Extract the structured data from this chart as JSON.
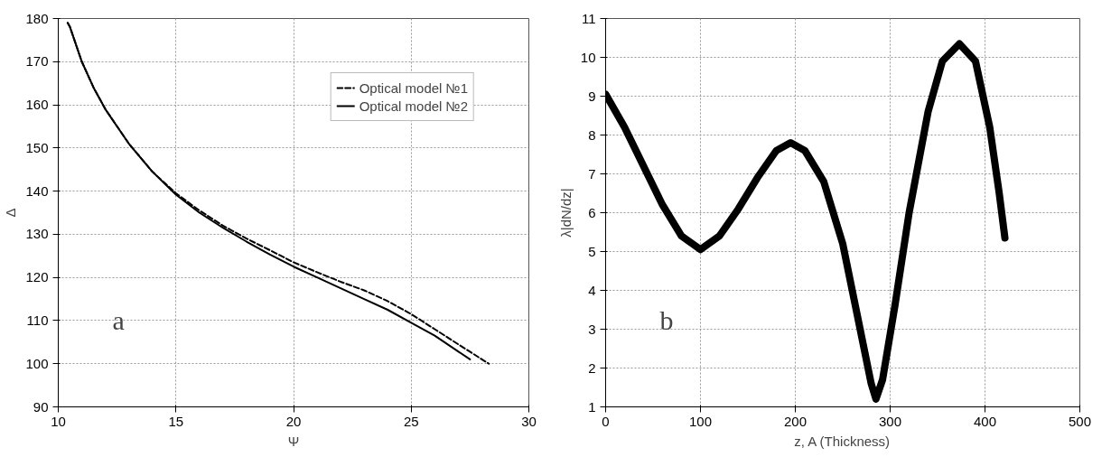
{
  "chart_data": [
    {
      "type": "line",
      "xlabel": "Ψ",
      "ylabel": "Δ",
      "xlim": [
        10,
        30
      ],
      "ylim": [
        90,
        180
      ],
      "xticks": [
        10,
        15,
        20,
        25,
        30
      ],
      "yticks": [
        90,
        100,
        110,
        120,
        130,
        140,
        150,
        160,
        170,
        180
      ],
      "grid": true,
      "legend": "top right",
      "marker": "none",
      "annotations": [
        "a"
      ],
      "series": [
        {
          "name": "Optical model №1",
          "color": "#000000",
          "line_style": "dashed",
          "x": [
            10.4,
            10.5,
            11,
            11.5,
            12,
            12.5,
            13,
            14,
            15,
            16,
            17,
            18,
            19,
            20,
            21,
            22,
            23,
            24,
            25,
            26,
            27,
            28.3
          ],
          "values": [
            179,
            178,
            170,
            164,
            159,
            155,
            151,
            144.5,
            139.5,
            135.5,
            132,
            129,
            126.3,
            123.5,
            121.2,
            119,
            117,
            114.5,
            111.5,
            108,
            104.5,
            100
          ]
        },
        {
          "name": "Optical model №2",
          "color": "#000000",
          "line_style": "solid",
          "x": [
            10.4,
            10.5,
            11,
            11.5,
            12,
            12.5,
            13,
            14,
            15,
            16,
            17,
            18,
            19,
            20,
            21,
            22,
            23,
            24,
            25,
            26,
            27.5
          ],
          "values": [
            179,
            178,
            170,
            164,
            159,
            155,
            151,
            144.5,
            139.2,
            135,
            131.5,
            128.3,
            125.3,
            122.5,
            120,
            117.5,
            115,
            112.5,
            109.5,
            106.5,
            101
          ]
        }
      ]
    },
    {
      "type": "line",
      "xlabel": "z, A (Thickness)",
      "ylabel": "λ|dN/dz|",
      "xlim": [
        0,
        500
      ],
      "ylim": [
        1,
        11
      ],
      "xticks": [
        0,
        100,
        200,
        300,
        400,
        500
      ],
      "yticks": [
        1,
        2,
        3,
        4,
        5,
        6,
        7,
        8,
        9,
        10,
        11
      ],
      "grid": true,
      "marker": "none",
      "annotations": [
        "b"
      ],
      "series": [
        {
          "color": "#000000",
          "line_style": "solid",
          "x": [
            0,
            20,
            40,
            60,
            80,
            100,
            120,
            140,
            160,
            180,
            195,
            210,
            230,
            250,
            265,
            280,
            285,
            292,
            305,
            320,
            340,
            355,
            373,
            390,
            405,
            415,
            421
          ],
          "values": [
            9.05,
            8.2,
            7.2,
            6.2,
            5.4,
            5.05,
            5.4,
            6.1,
            6.9,
            7.6,
            7.8,
            7.6,
            6.8,
            5.2,
            3.4,
            1.6,
            1.2,
            1.7,
            3.6,
            6.0,
            8.6,
            9.9,
            10.35,
            9.9,
            8.2,
            6.5,
            5.35
          ]
        }
      ]
    }
  ]
}
